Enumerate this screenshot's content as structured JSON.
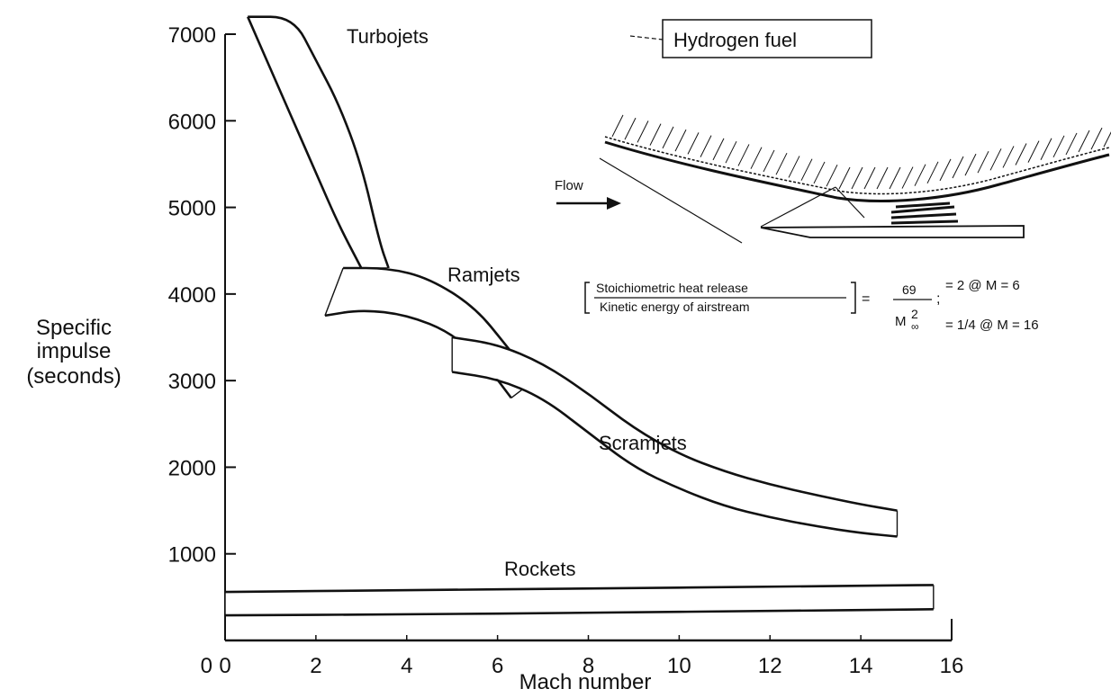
{
  "chart_data": {
    "type": "area",
    "xlabel": "Mach number",
    "ylabel_lines": [
      "Specific",
      "impulse",
      "(seconds)"
    ],
    "x_ticks": [
      "0",
      "2",
      "4",
      "6",
      "8",
      "10",
      "12",
      "14",
      "16"
    ],
    "y_ticks": [
      "0",
      "1000",
      "2000",
      "3000",
      "4000",
      "5000",
      "6000",
      "7000"
    ],
    "xlim": [
      0,
      16
    ],
    "ylim": [
      0,
      7000
    ],
    "grid": false,
    "series": [
      {
        "name": "Turbojets",
        "upper": [
          [
            0.5,
            7200
          ],
          [
            1.5,
            7200
          ],
          [
            2.0,
            6700
          ],
          [
            2.5,
            6200
          ],
          [
            3.0,
            5500
          ],
          [
            3.4,
            4600
          ],
          [
            3.6,
            4300
          ]
        ],
        "lower": [
          [
            0.5,
            7200
          ],
          [
            1.0,
            6600
          ],
          [
            1.5,
            6000
          ],
          [
            2.0,
            5400
          ],
          [
            2.5,
            4800
          ],
          [
            3.0,
            4300
          ]
        ]
      },
      {
        "name": "Ramjets",
        "upper": [
          [
            2.6,
            4300
          ],
          [
            3.6,
            4300
          ],
          [
            4.5,
            4180
          ],
          [
            5.5,
            3850
          ],
          [
            6.2,
            3400
          ],
          [
            6.8,
            3000
          ]
        ],
        "lower": [
          [
            2.2,
            3750
          ],
          [
            3.0,
            3820
          ],
          [
            4.0,
            3760
          ],
          [
            5.0,
            3550
          ],
          [
            5.8,
            3150
          ],
          [
            6.3,
            2800
          ]
        ]
      },
      {
        "name": "Scramjets",
        "upper": [
          [
            5.0,
            3500
          ],
          [
            6.0,
            3420
          ],
          [
            7.0,
            3200
          ],
          [
            8.0,
            2850
          ],
          [
            9.0,
            2450
          ],
          [
            10.0,
            2150
          ],
          [
            11.0,
            1950
          ],
          [
            12.0,
            1800
          ],
          [
            13.0,
            1680
          ],
          [
            14.0,
            1570
          ],
          [
            14.8,
            1500
          ]
        ],
        "lower": [
          [
            5.0,
            3100
          ],
          [
            6.0,
            3020
          ],
          [
            7.0,
            2800
          ],
          [
            8.0,
            2400
          ],
          [
            9.0,
            2000
          ],
          [
            10.0,
            1750
          ],
          [
            11.0,
            1550
          ],
          [
            12.0,
            1420
          ],
          [
            13.0,
            1320
          ],
          [
            14.0,
            1240
          ],
          [
            14.8,
            1200
          ]
        ]
      },
      {
        "name": "Rockets",
        "upper": [
          [
            0.0,
            560
          ],
          [
            4.0,
            580
          ],
          [
            8.0,
            600
          ],
          [
            12.0,
            620
          ],
          [
            15.6,
            640
          ]
        ],
        "lower": [
          [
            0.0,
            290
          ],
          [
            4.0,
            300
          ],
          [
            8.0,
            320
          ],
          [
            12.0,
            340
          ],
          [
            15.6,
            360
          ]
        ]
      }
    ]
  },
  "inset": {
    "fuel_label": "Hydrogen fuel",
    "flow_label": "Flow",
    "ratio_numerator_label": "Stoichiometric heat release",
    "ratio_denominator_label": "Kinetic energy of airstream",
    "equals_sign": "=",
    "formula_numerator": "69",
    "formula_denominator": "M",
    "formula_exponent": "2",
    "formula_subscript": "∞",
    "semicolon": ";",
    "result_1": "= 2 @ M = 6",
    "result_2": "= 1/4 @ M = 16"
  },
  "colors": {
    "ink": "#111111",
    "paper": "#ffffff",
    "band_fill": "#ffffff"
  }
}
